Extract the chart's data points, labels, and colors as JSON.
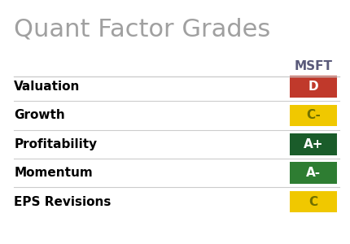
{
  "title": "Quant Factor Grades",
  "title_color": "#a0a0a0",
  "title_fontsize": 22,
  "column_header": "MSFT",
  "column_header_color": "#5a5a7a",
  "column_header_fontsize": 11,
  "background_color": "#ffffff",
  "factors": [
    "Valuation",
    "Growth",
    "Profitability",
    "Momentum",
    "EPS Revisions"
  ],
  "grades": [
    "D",
    "C-",
    "A+",
    "A-",
    "C"
  ],
  "grade_bg_colors": [
    "#c0392b",
    "#f0c800",
    "#1a5c2a",
    "#2e7d32",
    "#f0c800"
  ],
  "grade_text_colors": [
    "#ffffff",
    "#707000",
    "#ffffff",
    "#ffffff",
    "#707000"
  ],
  "factor_fontsize": 11,
  "grade_fontsize": 11,
  "line_color": "#cccccc",
  "factor_label_color": "#000000"
}
